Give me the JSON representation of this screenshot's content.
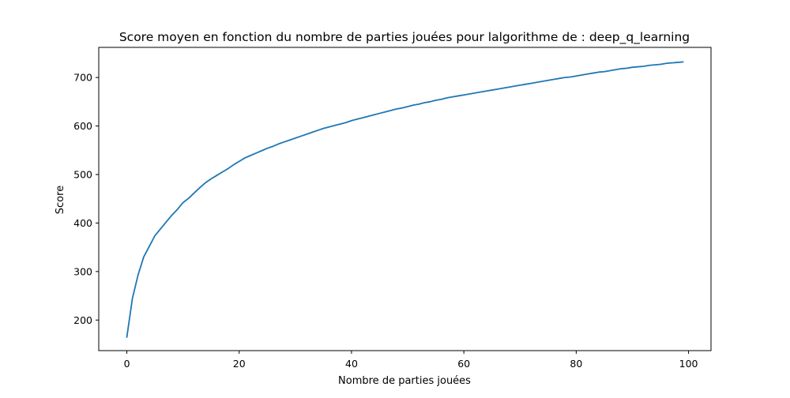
{
  "chart_data": {
    "type": "line",
    "title": "Score moyen en fonction du nombre de parties jouées pour lalgorithme de : deep_q_learning",
    "xlabel": "Nombre de parties jouées",
    "ylabel": "Score",
    "xlim": [
      -5,
      104
    ],
    "ylim": [
      137,
      762
    ],
    "xticks": [
      0,
      20,
      40,
      60,
      80,
      100
    ],
    "yticks": [
      200,
      300,
      400,
      500,
      600,
      700
    ],
    "grid": false,
    "legend": "none",
    "series": [
      {
        "color": "#1f77b4",
        "x": [
          0,
          1,
          2,
          3,
          4,
          5,
          6,
          7,
          8,
          9,
          10,
          11,
          12,
          13,
          14,
          15,
          16,
          17,
          18,
          19,
          20,
          21,
          22,
          23,
          24,
          25,
          26,
          27,
          28,
          29,
          30,
          31,
          32,
          33,
          34,
          35,
          36,
          37,
          38,
          39,
          40,
          41,
          42,
          43,
          44,
          45,
          46,
          47,
          48,
          49,
          50,
          51,
          52,
          53,
          54,
          55,
          56,
          57,
          58,
          59,
          60,
          61,
          62,
          63,
          64,
          65,
          66,
          67,
          68,
          69,
          70,
          71,
          72,
          73,
          74,
          75,
          76,
          77,
          78,
          79,
          80,
          81,
          82,
          83,
          84,
          85,
          86,
          87,
          88,
          89,
          90,
          91,
          92,
          93,
          94,
          95,
          96,
          97,
          98,
          99
        ],
        "y": [
          165,
          245,
          293,
          330,
          352,
          374,
          388,
          402,
          416,
          428,
          442,
          451,
          462,
          473,
          483,
          491,
          498,
          505,
          512,
          520,
          527,
          534,
          539,
          544,
          549,
          554,
          558,
          563,
          567,
          571,
          575,
          579,
          583,
          587,
          591,
          595,
          598,
          601,
          604,
          607,
          611,
          614,
          617,
          620,
          623,
          626,
          629,
          632,
          635,
          637,
          640,
          643,
          645,
          648,
          650,
          653,
          655,
          658,
          660,
          662,
          664,
          666,
          668,
          670,
          672,
          674,
          676,
          678,
          680,
          682,
          684,
          686,
          688,
          690,
          692,
          694,
          696,
          698,
          700,
          701,
          703,
          705,
          707,
          709,
          711,
          712,
          714,
          716,
          718,
          719,
          721,
          722,
          723,
          725,
          726,
          727,
          729,
          730,
          731,
          732
        ]
      }
    ]
  }
}
